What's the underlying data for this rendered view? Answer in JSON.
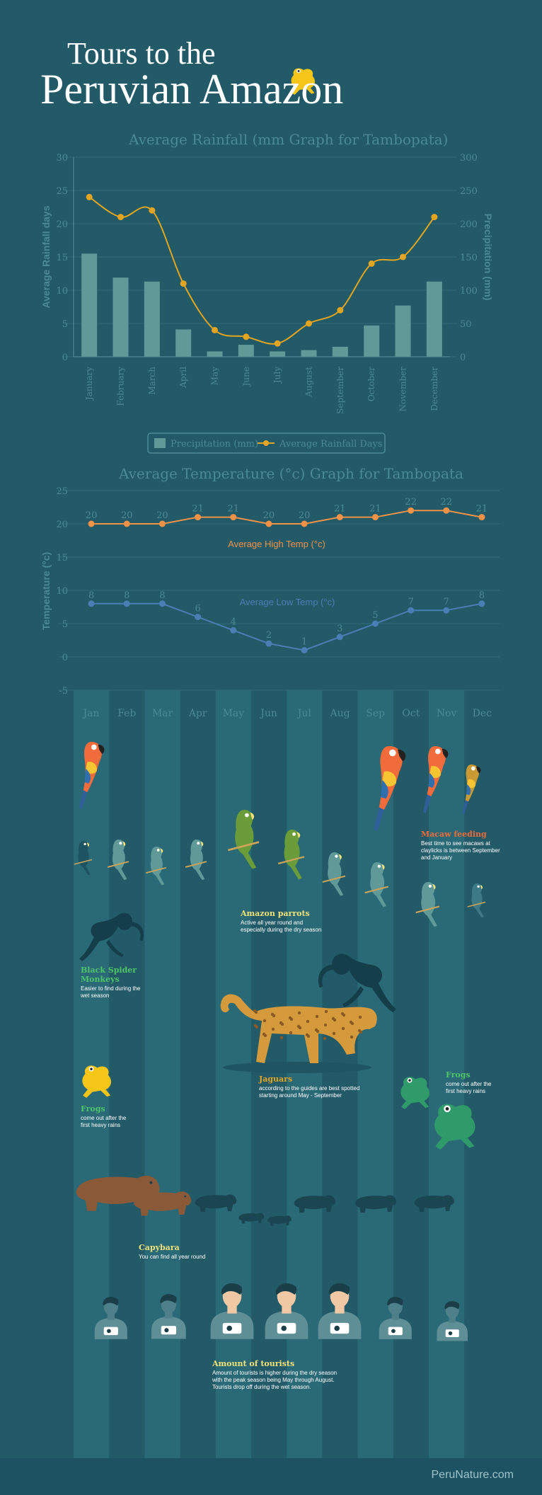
{
  "title": {
    "line1": "Tours to the",
    "line2": "Peruvian Amazon"
  },
  "colors": {
    "background": "#235a68",
    "bar": "#5f9a99",
    "rain_line": "#e3a51f",
    "high": "#f29247",
    "low": "#4a7fb5",
    "axis_text": "#4a8a92",
    "band": "#2a6976"
  },
  "chart_data": [
    {
      "type": "bar",
      "title": "Average Rainfall (mm Graph for Tambopata)",
      "ylabel": "Average Rainfall days",
      "y2label": "Precipitation (mm)",
      "ylim": [
        0,
        30
      ],
      "y2lim": [
        0,
        300
      ],
      "yticks": [
        0,
        5,
        10,
        15,
        20,
        25,
        30
      ],
      "y2ticks": [
        0,
        50,
        100,
        150,
        200,
        250,
        300
      ],
      "grid": true,
      "legend": "bottom",
      "categories": [
        "January",
        "February",
        "March",
        "April",
        "May",
        "June",
        "July",
        "August",
        "September",
        "October",
        "November",
        "December"
      ],
      "series": [
        {
          "name": "Precipitation (mm)",
          "type": "bar",
          "axis": "right",
          "values": [
            155,
            119,
            113,
            41,
            8,
            18,
            8,
            10,
            15,
            47,
            77,
            113
          ]
        },
        {
          "name": "Average Rainfall Days",
          "type": "line",
          "axis": "left",
          "values": [
            24,
            21,
            22,
            11,
            4,
            3,
            2,
            5,
            7,
            14,
            15,
            21
          ]
        }
      ]
    },
    {
      "type": "line",
      "title": "Average Temperature (°c) Graph for Tambopata",
      "ylabel": "Temperature (°c)",
      "ylim": [
        -5,
        25
      ],
      "yticks": [
        -5,
        0,
        5,
        10,
        15,
        20,
        25
      ],
      "grid": true,
      "categories": [
        "Jan",
        "Feb",
        "Mar",
        "Apr",
        "May",
        "Jun",
        "Jul",
        "Aug",
        "Sep",
        "Oct",
        "Nov",
        "Dec"
      ],
      "series": [
        {
          "name": "Average High Temp (°c)",
          "values": [
            20,
            20,
            20,
            21,
            21,
            20,
            20,
            21,
            21,
            22,
            22,
            21
          ]
        },
        {
          "name": "Average Low Temp (°c)",
          "values": [
            8,
            8,
            8,
            6,
            4,
            2,
            1,
            3,
            5,
            7,
            7,
            8
          ]
        }
      ]
    }
  ],
  "annotations": {
    "macaw": {
      "title": "Macaw feeding",
      "text": "Best time to see macaws at claylicks is between September and January"
    },
    "parrots": {
      "title": "Amazon parrots",
      "text": "Active all year round and especially during the dry season"
    },
    "monkeys": {
      "title": "Black Spider Monkeys",
      "text": "Easier to find during the wet season"
    },
    "jaguars": {
      "title": "Jaguars",
      "text": "according to the guides are best spotted starting around May - September"
    },
    "frogs_left": {
      "title": "Frogs",
      "text": "come out after the first heavy rains"
    },
    "frogs_right": {
      "title": "Frogs",
      "text": "come out after the first heavy rains"
    },
    "capybara": {
      "title": "Capybara",
      "text": "You can find all year round"
    },
    "tourists": {
      "title": "Amount of tourists",
      "text": "Amount of tourists is higher during the dry season with the peak season being May through August. Tourists drop off during the wet season."
    }
  },
  "icons": [
    "frog-icon",
    "macaw-icon",
    "parrot-icon",
    "spider-monkey-icon",
    "jaguar-icon",
    "capybara-icon",
    "tourist-icon"
  ],
  "footer": {
    "brand": "PeruNature.com"
  }
}
